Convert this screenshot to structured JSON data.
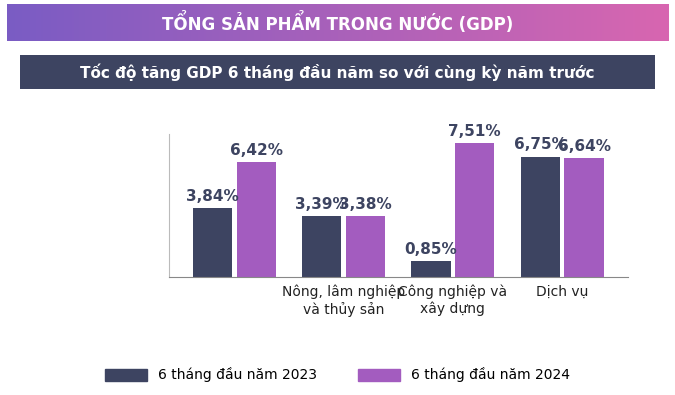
{
  "chart_data": {
    "type": "bar",
    "title": "TỔNG SẢN PHẨM TRONG NƯỚC (GDP)",
    "subtitle": "Tốc độ tăng GDP 6 tháng đầu năm so với cùng kỳ năm trước",
    "categories": [
      null,
      "Nông, lâm nghiệp và thủy sản",
      "Công nghiệp và xây dựng",
      "Dịch vụ"
    ],
    "series": [
      {
        "name": "6 tháng đầu năm 2023",
        "color": "#3d4461",
        "values": [
          3.84,
          3.39,
          0.85,
          6.75
        ],
        "value_labels": [
          "3,84%",
          "3,39%",
          "0,85%",
          "6,75%"
        ]
      },
      {
        "name": "6 tháng đầu năm 2024",
        "color": "#a35cbf",
        "values": [
          6.42,
          3.38,
          7.51,
          6.64
        ],
        "value_labels": [
          "6,42%",
          "3,38%",
          "7,51%",
          "6,64%"
        ]
      }
    ],
    "ylim": [
      0,
      8
    ],
    "yticks": [],
    "grid": false,
    "legend": "lower center",
    "data_labels": true,
    "tick_labels": "x"
  }
}
